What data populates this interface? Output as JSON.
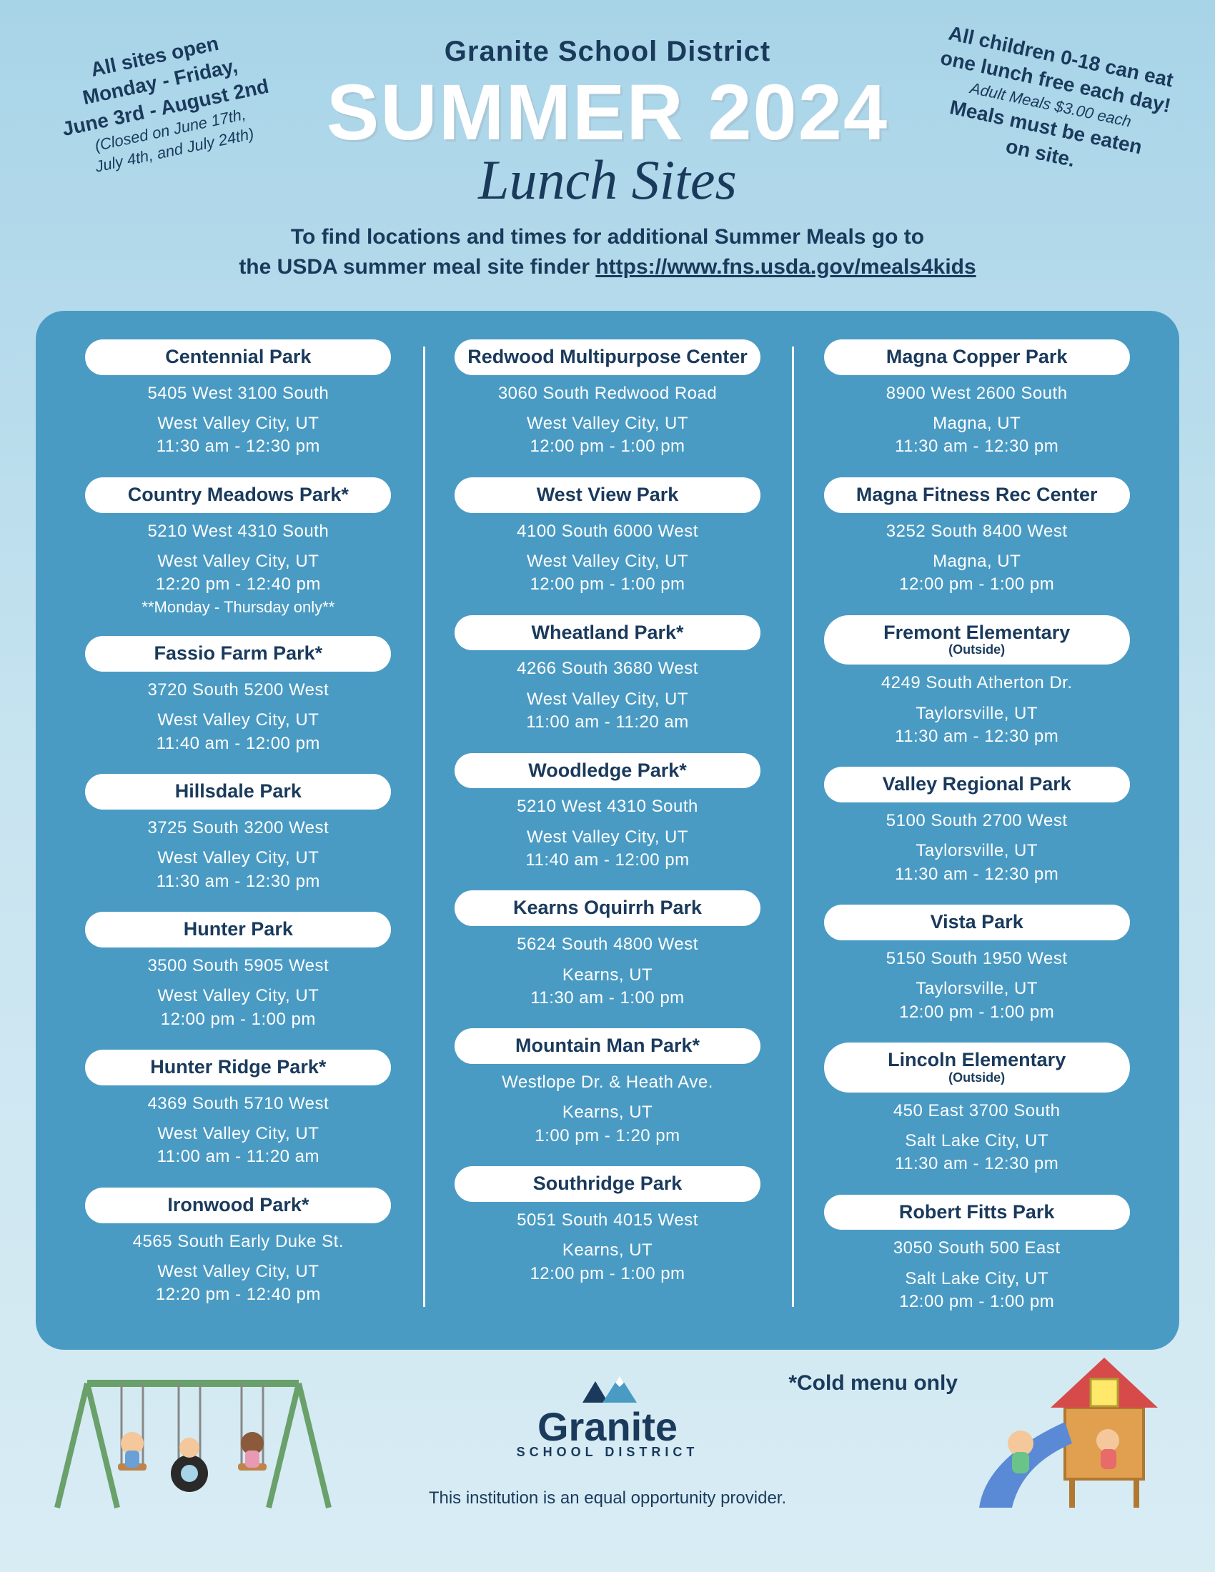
{
  "header": {
    "district": "Granite School District",
    "title": "SUMMER 2024",
    "subtitle": "Lunch Sites",
    "note_left_l1": "All sites open",
    "note_left_l2": "Monday - Friday,",
    "note_left_l3": "June 3rd - August 2nd",
    "note_left_l4": "(Closed on June 17th,",
    "note_left_l5": "July 4th, and July 24th)",
    "note_right_l1": "All children 0-18 can eat",
    "note_right_l2": "one lunch free each day!",
    "note_right_l3": "Adult Meals $3.00 each",
    "note_right_l4": "Meals must be eaten",
    "note_right_l5": "on site.",
    "subhead_l1": "To find locations and times for additional Summer Meals go to",
    "subhead_l2_pre": "the USDA summer meal site finder ",
    "subhead_url": "https://www.fns.usda.gov/meals4kids"
  },
  "columns": [
    [
      {
        "name": "Centennial Park",
        "addr1": "5405 West 3100 South",
        "addr2": "West Valley City, UT",
        "time": "11:30 am - 12:30 pm"
      },
      {
        "name": "Country Meadows Park*",
        "addr1": "5210 West 4310 South",
        "addr2": "West Valley City, UT",
        "time": "12:20 pm - 12:40 pm",
        "note": "**Monday - Thursday only**"
      },
      {
        "name": "Fassio Farm Park*",
        "addr1": "3720 South 5200 West",
        "addr2": "West Valley City, UT",
        "time": "11:40 am - 12:00 pm"
      },
      {
        "name": "Hillsdale Park",
        "addr1": "3725 South 3200 West",
        "addr2": "West Valley City, UT",
        "time": "11:30 am - 12:30 pm"
      },
      {
        "name": "Hunter Park",
        "addr1": "3500 South 5905 West",
        "addr2": "West Valley City, UT",
        "time": "12:00 pm - 1:00 pm"
      },
      {
        "name": "Hunter Ridge Park*",
        "addr1": "4369 South 5710 West",
        "addr2": "West Valley City, UT",
        "time": "11:00 am - 11:20 am"
      },
      {
        "name": "Ironwood Park*",
        "addr1": "4565 South Early Duke St.",
        "addr2": "West Valley City, UT",
        "time": "12:20 pm - 12:40 pm"
      }
    ],
    [
      {
        "name": "Redwood Multipurpose Center",
        "addr1": "3060 South Redwood Road",
        "addr2": "West Valley City, UT",
        "time": "12:00 pm - 1:00 pm"
      },
      {
        "name": "West View Park",
        "addr1": "4100 South 6000 West",
        "addr2": "West Valley City, UT",
        "time": "12:00 pm - 1:00 pm"
      },
      {
        "name": "Wheatland Park*",
        "addr1": "4266 South 3680 West",
        "addr2": "West Valley City, UT",
        "time": "11:00 am - 11:20 am"
      },
      {
        "name": "Woodledge Park*",
        "addr1": "5210 West 4310 South",
        "addr2": "West Valley City, UT",
        "time": "11:40 am - 12:00 pm"
      },
      {
        "name": "Kearns Oquirrh Park",
        "addr1": "5624 South 4800 West",
        "addr2": "Kearns, UT",
        "time": "11:30 am - 1:00 pm"
      },
      {
        "name": "Mountain Man Park*",
        "addr1": "Westlope Dr. & Heath Ave.",
        "addr2": "Kearns, UT",
        "time": "1:00 pm - 1:20 pm"
      },
      {
        "name": "Southridge Park",
        "addr1": "5051 South 4015 West",
        "addr2": "Kearns, UT",
        "time": "12:00 pm - 1:00 pm"
      }
    ],
    [
      {
        "name": "Magna Copper Park",
        "addr1": "8900 West 2600 South",
        "addr2": "Magna, UT",
        "time": "11:30 am - 12:30 pm"
      },
      {
        "name": "Magna Fitness Rec Center",
        "addr1": "3252 South 8400 West",
        "addr2": "Magna, UT",
        "time": "12:00 pm - 1:00 pm"
      },
      {
        "name": "Fremont Elementary",
        "subloc": "(Outside)",
        "addr1": "4249 South Atherton Dr.",
        "addr2": "Taylorsville, UT",
        "time": "11:30 am - 12:30 pm"
      },
      {
        "name": "Valley Regional Park",
        "addr1": "5100 South 2700 West",
        "addr2": "Taylorsville, UT",
        "time": "11:30 am - 12:30 pm"
      },
      {
        "name": "Vista Park",
        "addr1": "5150 South 1950 West",
        "addr2": "Taylorsville, UT",
        "time": "12:00 pm - 1:00 pm"
      },
      {
        "name": "Lincoln Elementary",
        "subloc": "(Outside)",
        "addr1": "450 East 3700 South",
        "addr2": "Salt Lake City, UT",
        "time": "11:30 am - 12:30 pm"
      },
      {
        "name": "Robert Fitts Park",
        "addr1": "3050 South 500 East",
        "addr2": "Salt Lake City, UT",
        "time": "12:00 pm - 1:00 pm"
      }
    ]
  ],
  "footer": {
    "cold_note": "*Cold menu only",
    "logo_text": "Granite",
    "logo_sub": "SCHOOL DISTRICT",
    "eop": "This institution is an equal opportunity provider."
  },
  "colors": {
    "panel_bg": "#4a9bc4",
    "pill_bg": "#ffffff",
    "text_dark": "#1a3a5c",
    "text_light": "#ffffff"
  }
}
